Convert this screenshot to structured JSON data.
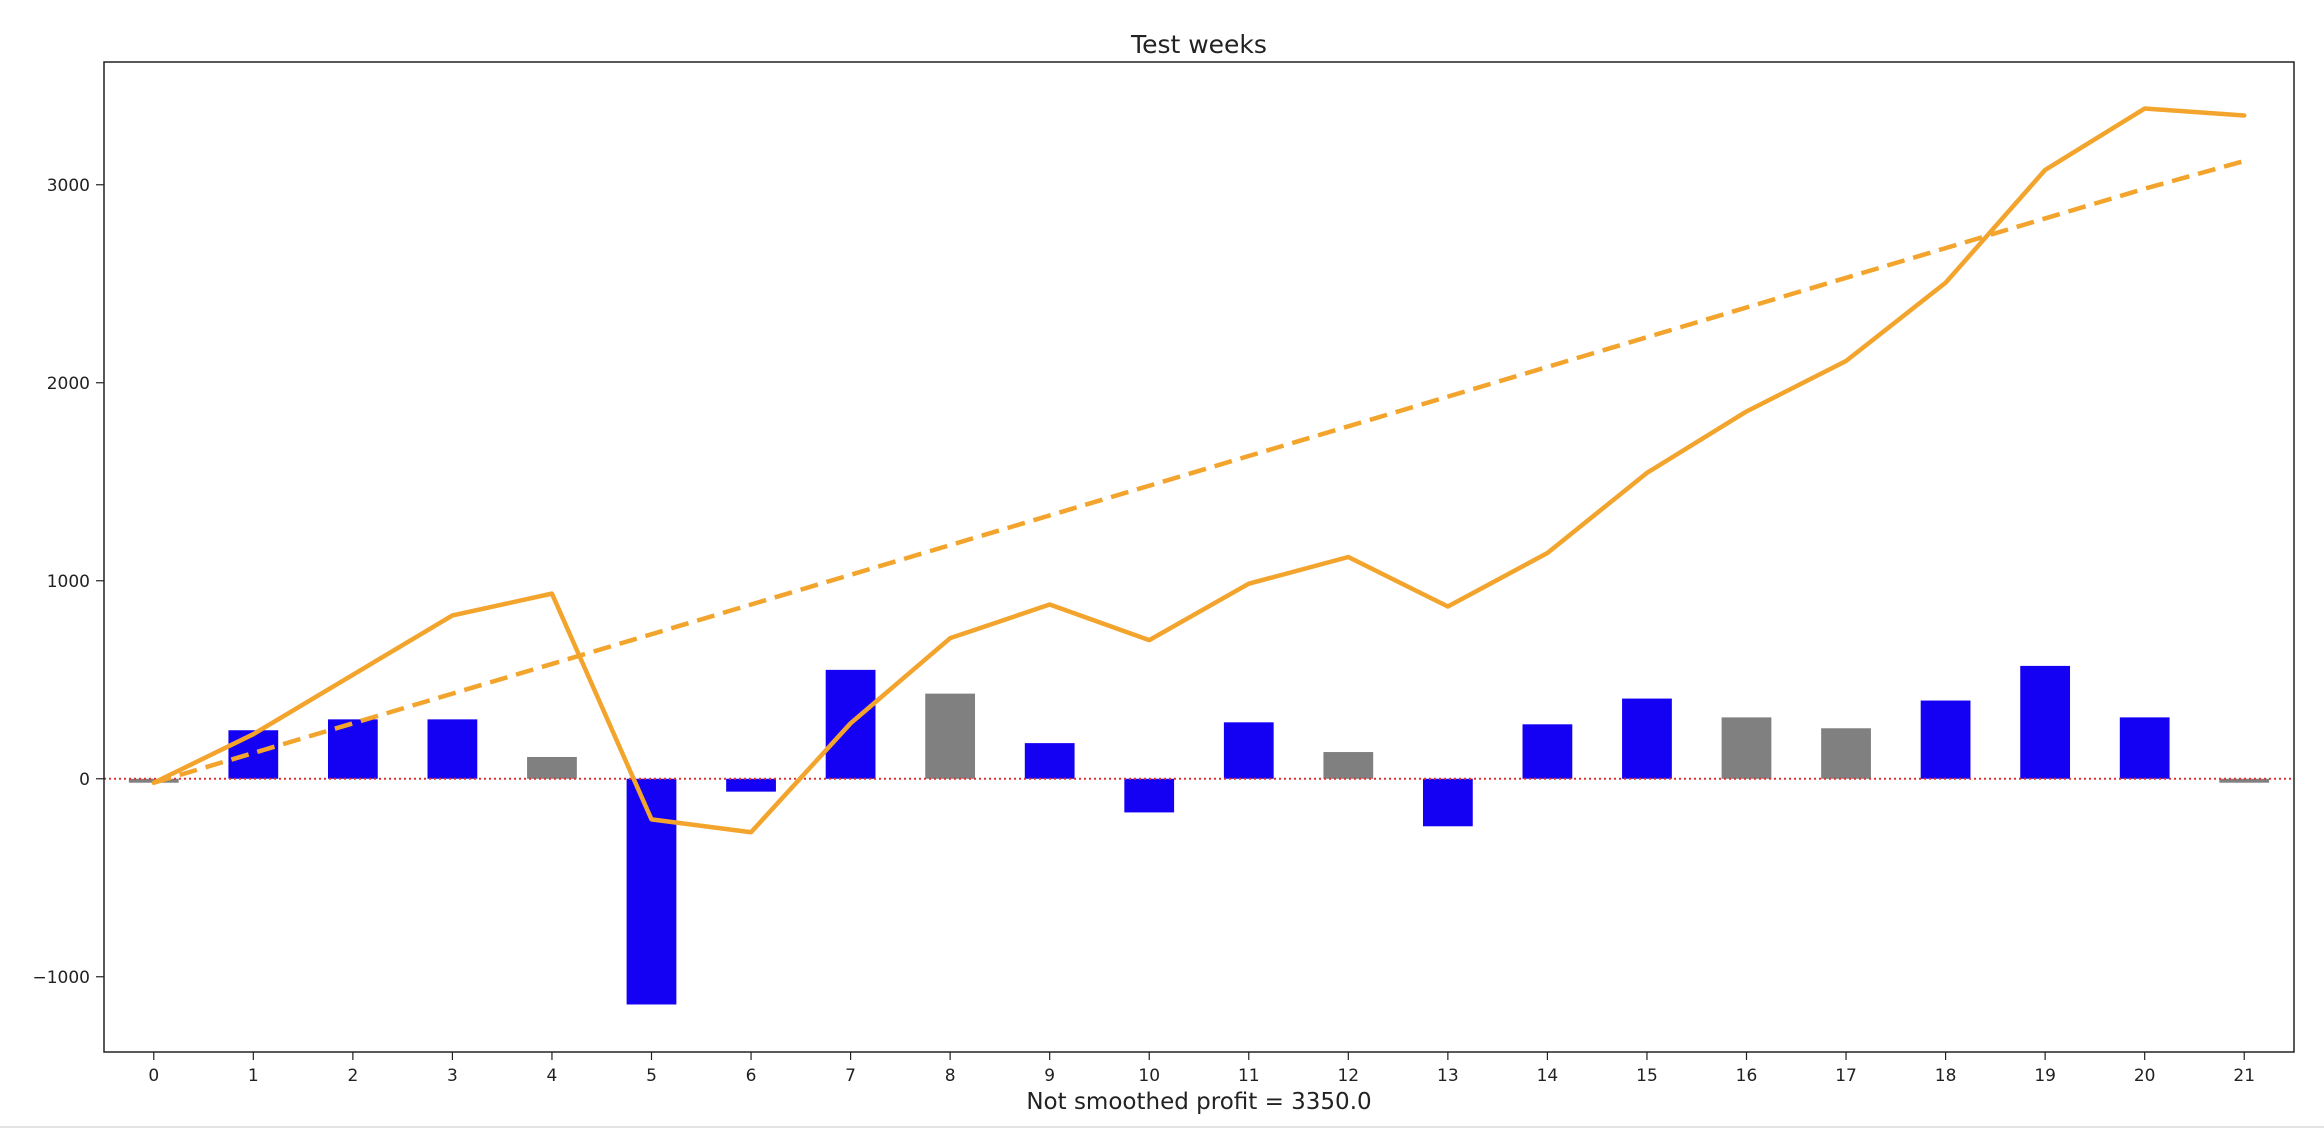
{
  "chart_data": {
    "type": "bar",
    "title": "Test weeks",
    "xlabel": "Not smoothed profit = 3350.0",
    "ylabel": "",
    "x": [
      0,
      1,
      2,
      3,
      4,
      5,
      6,
      7,
      8,
      9,
      10,
      11,
      12,
      13,
      14,
      15,
      16,
      17,
      18,
      19,
      20,
      21
    ],
    "x_tick_labels": [
      "0",
      "1",
      "2",
      "3",
      "4",
      "5",
      "6",
      "7",
      "8",
      "9",
      "10",
      "11",
      "12",
      "13",
      "14",
      "15",
      "16",
      "17",
      "18",
      "19",
      "20",
      "21"
    ],
    "y_tick_values": [
      -1000,
      0,
      1000,
      2000,
      3000
    ],
    "y_tick_labels": [
      "−1000",
      "0",
      "1000",
      "2000",
      "3000"
    ],
    "xlim": [
      -0.5,
      21.5
    ],
    "ylim": [
      -1380,
      3620
    ],
    "grid": false,
    "bars": {
      "values": [
        -20,
        245,
        300,
        300,
        110,
        -1140,
        -65,
        550,
        430,
        180,
        -170,
        285,
        135,
        -240,
        275,
        405,
        310,
        255,
        395,
        570,
        310,
        -20
      ],
      "colors": [
        "gray",
        "blue",
        "blue",
        "blue",
        "gray",
        "blue",
        "blue",
        "blue",
        "gray",
        "blue",
        "blue",
        "blue",
        "gray",
        "blue",
        "blue",
        "blue",
        "gray",
        "gray",
        "blue",
        "blue",
        "blue",
        "gray"
      ]
    },
    "series": [
      {
        "style": "solid",
        "values": [
          -20,
          225,
          525,
          825,
          935,
          -205,
          -270,
          280,
          710,
          880,
          700,
          985,
          1120,
          870,
          1140,
          1545,
          1855,
          2110,
          2505,
          3075,
          3385,
          3350
        ]
      },
      {
        "style": "dashed",
        "values": [
          -20,
          130,
          280,
          430,
          580,
          730,
          880,
          1030,
          1180,
          1330,
          1480,
          1630,
          1780,
          1930,
          2080,
          2230,
          2380,
          2530,
          2680,
          2830,
          2980,
          3120
        ]
      }
    ],
    "zero_line": {
      "value": 0,
      "style": "dotted",
      "color": "#e03030"
    },
    "colors": {
      "blue": "#1400f2",
      "gray": "#808080",
      "line": "#f2a42c",
      "zero": "#e03030",
      "frame": "#222222"
    }
  }
}
